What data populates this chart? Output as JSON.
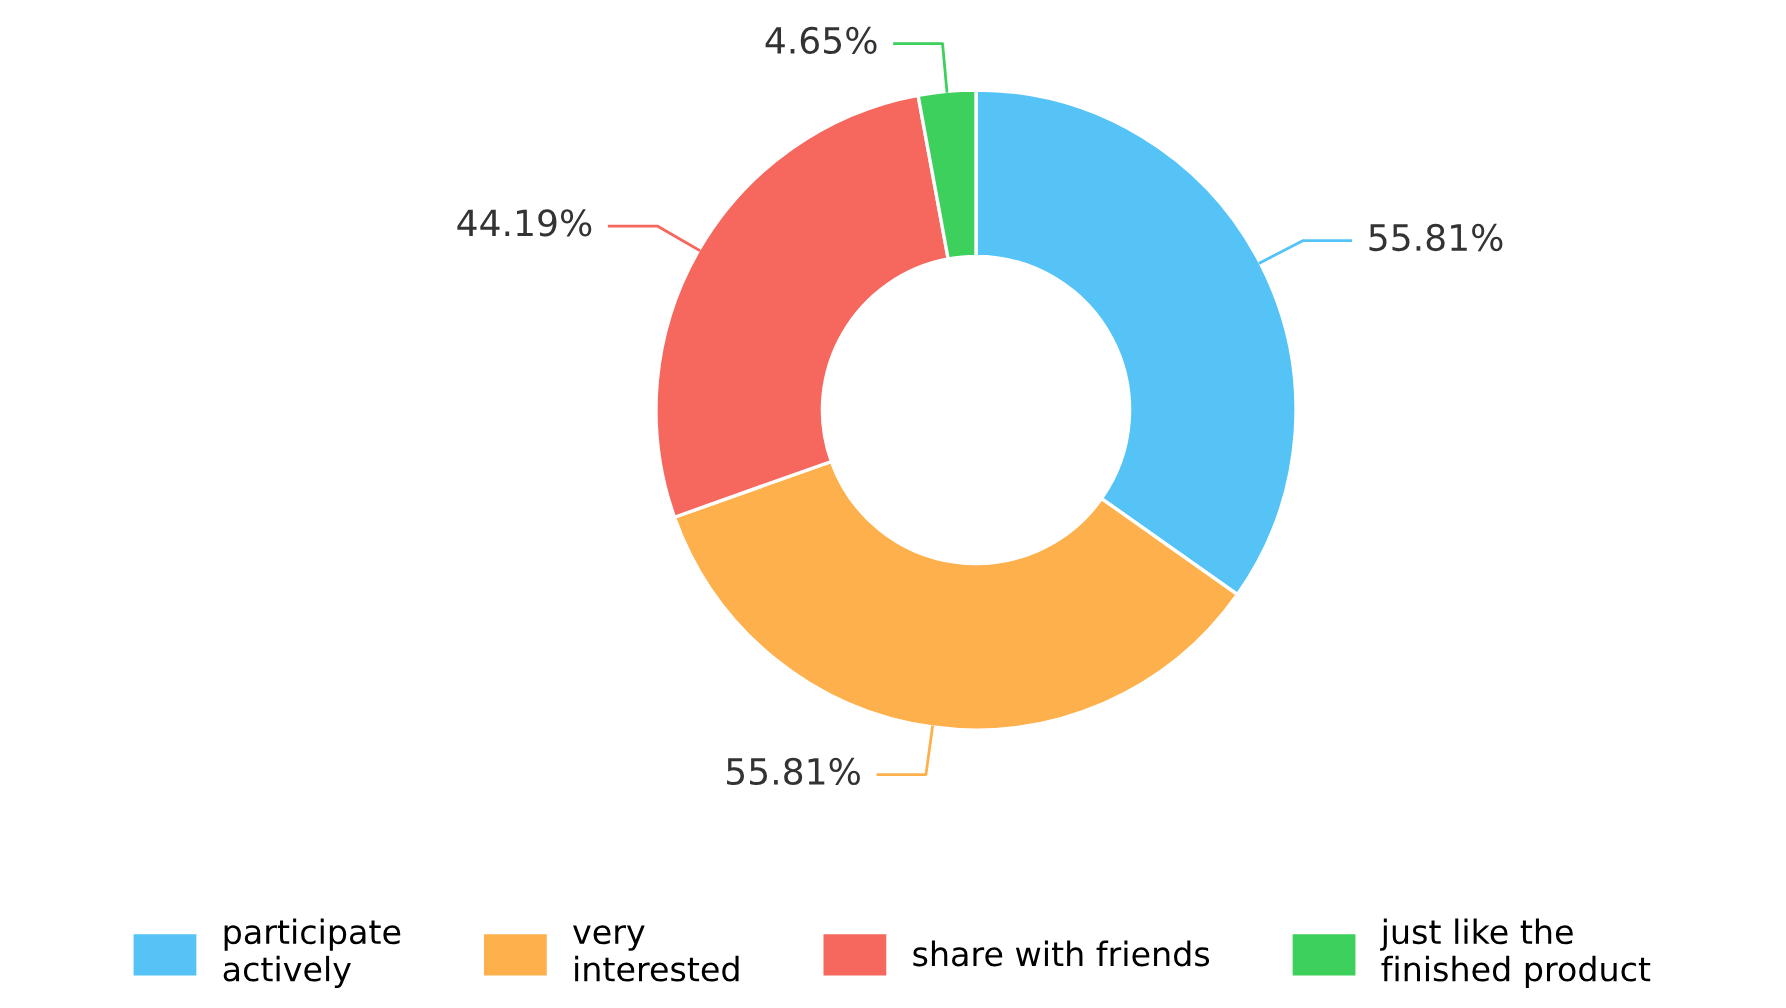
{
  "chart_data": {
    "type": "donut",
    "categories": [
      "participate\nactively",
      "very\ninterested",
      "share with friends",
      "just like the\nfinished product"
    ],
    "values": [
      55.81,
      55.81,
      44.19,
      4.65
    ],
    "colors": [
      "#55c3f6",
      "#fdb04b",
      "#f6685e",
      "#3dd05c"
    ],
    "value_labels": [
      "55.81%",
      "55.81%",
      "44.19%",
      "4.65%"
    ],
    "legend": "bottom"
  }
}
